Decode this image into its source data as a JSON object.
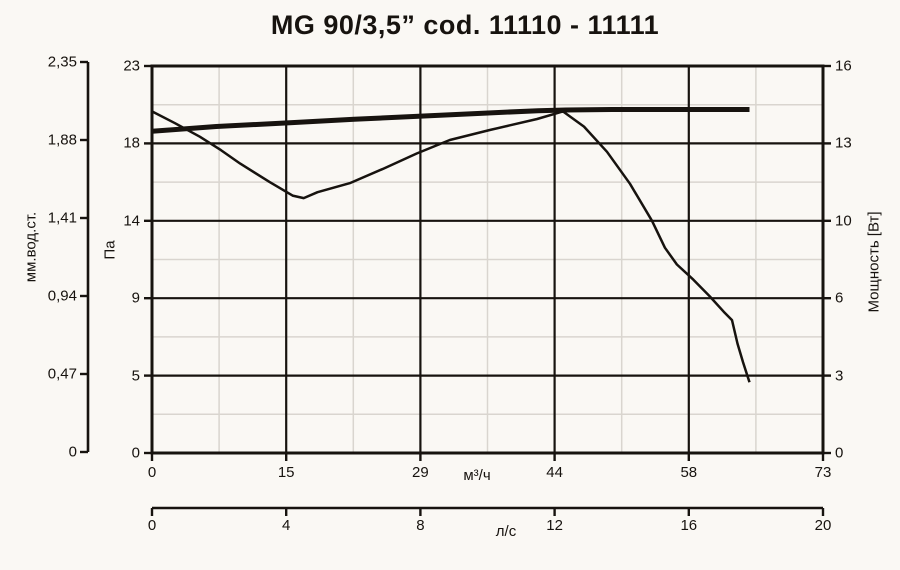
{
  "title": "MG 90/3,5” cod. 11110 - 11111",
  "axes": {
    "left_outer": {
      "label": "мм.вод.ст.",
      "ticks": [
        "2,35",
        "1,88",
        "1,41",
        "0,94",
        "0,47",
        "0"
      ]
    },
    "left_inner": {
      "label": "Па",
      "ticks": [
        "23",
        "18",
        "14",
        "9",
        "5",
        "0"
      ]
    },
    "right": {
      "label": "Мощность [Вт]",
      "ticks": [
        "16",
        "13",
        "10",
        "6",
        "3",
        "0"
      ]
    },
    "bottom_inner": {
      "label": "м³/ч",
      "ticks": [
        "0",
        "15",
        "29",
        "44",
        "58",
        "73"
      ]
    },
    "bottom_outer": {
      "label": "л/с",
      "ticks": [
        "0",
        "4",
        "8",
        "12",
        "16",
        "20"
      ]
    }
  },
  "colors": {
    "background": "#faf8f4",
    "line": "#17130f",
    "grid_major": "#17130f",
    "grid_minor": "#d9d5cf"
  },
  "chart_data": {
    "type": "line",
    "title": "MG 90/3,5” cod. 11110 - 11111",
    "grid": {
      "major": true,
      "minor": true,
      "minor_per_major": 2
    },
    "x_axis": {
      "label": "м³/ч",
      "range": [
        0,
        73
      ],
      "tick_labels": [
        "0",
        "15",
        "29",
        "44",
        "58",
        "73"
      ],
      "secondary": {
        "label": "л/с",
        "range": [
          0,
          20
        ],
        "tick_labels": [
          "0",
          "4",
          "8",
          "12",
          "16",
          "20"
        ]
      }
    },
    "y_axis_pressure": {
      "labels": [
        "Па",
        "мм.вод.ст."
      ],
      "range_pa": [
        0,
        23
      ],
      "tick_labels_pa": [
        "23",
        "18",
        "14",
        "9",
        "5",
        "0"
      ],
      "tick_labels_mm": [
        "2,35",
        "1,88",
        "1,41",
        "0,94",
        "0,47",
        "0"
      ]
    },
    "y_axis_power": {
      "label": "Мощность [Вт]",
      "range": [
        0,
        16
      ],
      "tick_labels": [
        "16",
        "13",
        "10",
        "6",
        "3",
        "0"
      ]
    },
    "series": [
      {
        "name": "pressure-curve",
        "unit": "Па",
        "axis": "pressure",
        "style": "thin",
        "points": [
          [
            0,
            20.3
          ],
          [
            2.5,
            19.6
          ],
          [
            5.2,
            18.8
          ],
          [
            7.5,
            18.0
          ],
          [
            9.6,
            17.2
          ],
          [
            12.8,
            16.1
          ],
          [
            15.3,
            15.3
          ],
          [
            16.5,
            15.15
          ],
          [
            18,
            15.5
          ],
          [
            21.6,
            16.05
          ],
          [
            25.2,
            16.9
          ],
          [
            28.8,
            17.8
          ],
          [
            32.4,
            18.6
          ],
          [
            36.8,
            19.2
          ],
          [
            41.9,
            19.85
          ],
          [
            44.7,
            20.3
          ],
          [
            47,
            19.4
          ],
          [
            49.5,
            17.9
          ],
          [
            52,
            16.0
          ],
          [
            54.4,
            13.8
          ],
          [
            55.8,
            12.2
          ],
          [
            57.1,
            11.2
          ],
          [
            58.9,
            10.3
          ],
          [
            60.7,
            9.3
          ],
          [
            62.2,
            8.4
          ],
          [
            63.1,
            7.9
          ],
          [
            63.7,
            6.5
          ],
          [
            64.3,
            5.4
          ],
          [
            65,
            4.2
          ]
        ]
      },
      {
        "name": "power-curve",
        "unit": "Вт",
        "axis": "power",
        "style": "thick",
        "points": [
          [
            0,
            13.3
          ],
          [
            7,
            13.5
          ],
          [
            15,
            13.65
          ],
          [
            22,
            13.8
          ],
          [
            29,
            13.92
          ],
          [
            36,
            14.05
          ],
          [
            42,
            14.15
          ],
          [
            45,
            14.18
          ],
          [
            50,
            14.2
          ],
          [
            65,
            14.2
          ]
        ]
      }
    ]
  }
}
